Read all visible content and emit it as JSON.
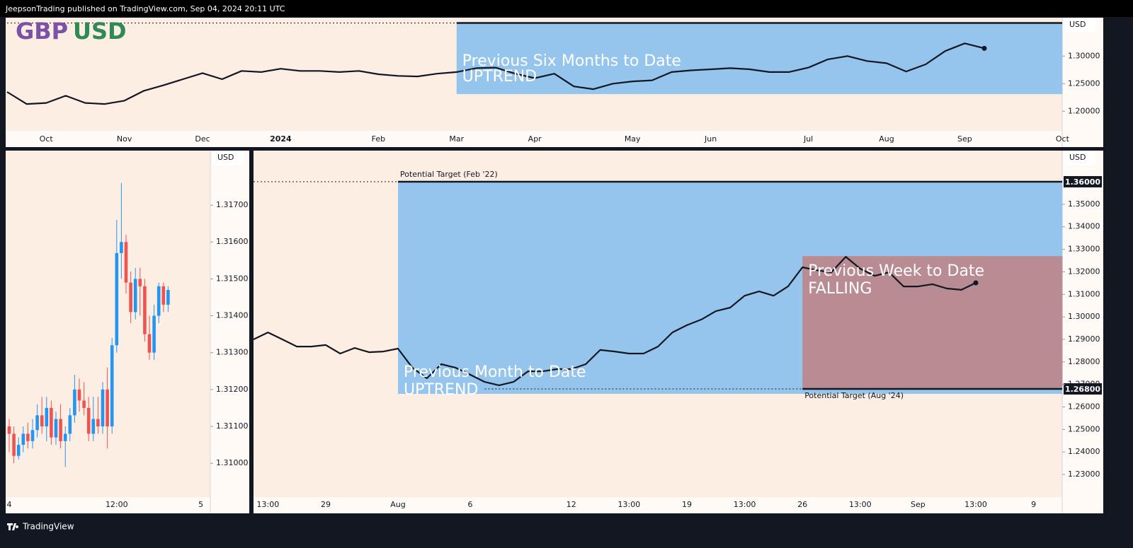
{
  "header": {
    "text": "JeepsonTrading published on TradingView.com, Sep 04, 2024 20:11 UTC"
  },
  "footer": {
    "brand": "TradingView"
  },
  "chart_data": [
    {
      "type": "line",
      "title": [
        {
          "text": "GBP",
          "color": "#7b52a8"
        },
        {
          "text": "USD",
          "color": "#2e8b57"
        }
      ],
      "axis_label": "USD",
      "color": "#131722",
      "categories": [
        null,
        null,
        "Oct",
        null,
        null,
        null,
        "Nov",
        null,
        null,
        null,
        "Dec",
        null,
        null,
        null,
        "2024",
        null,
        null,
        null,
        null,
        "Feb",
        null,
        null,
        null,
        "Mar",
        null,
        null,
        null,
        "Apr",
        null,
        null,
        null,
        null,
        "May",
        null,
        null,
        null,
        "Jun",
        null,
        null,
        null,
        null,
        "Jul",
        null,
        null,
        null,
        "Aug",
        null,
        null,
        null,
        "Sep",
        null,
        null,
        null,
        null,
        "Oct"
      ],
      "values": [
        1.235,
        1.213,
        1.215,
        1.228,
        1.215,
        1.213,
        1.219,
        1.237,
        1.247,
        1.258,
        1.269,
        1.258,
        1.273,
        1.271,
        1.277,
        1.273,
        1.273,
        1.271,
        1.273,
        1.267,
        1.264,
        1.263,
        1.268,
        1.271,
        1.278,
        1.279,
        1.268,
        1.26,
        1.268,
        1.245,
        1.24,
        1.25,
        1.254,
        1.256,
        1.271,
        1.274,
        1.276,
        1.278,
        1.276,
        1.271,
        1.271,
        1.279,
        1.294,
        1.3,
        1.291,
        1.287,
        1.272,
        1.285,
        1.309,
        1.323,
        1.314,
        null,
        null,
        null,
        null
      ],
      "ylim": [
        1.167,
        1.367
      ],
      "yticks": [
        {
          "value": 1.2,
          "label": "1.20000"
        },
        {
          "value": 1.25,
          "label": "1.25000"
        },
        {
          "value": 1.3,
          "label": "1.30000"
        }
      ],
      "regions": [
        {
          "lines": [
            "Previous Six Months to Date",
            "UPTREND"
          ],
          "color": "#95c5ec",
          "xrange": [
            23,
            54
          ],
          "yrange": [
            1.231,
            1.36
          ],
          "text_position": "middle"
        }
      ],
      "levels": [
        {
          "value": 1.36,
          "from": 23,
          "dotted_from": 0
        }
      ]
    },
    {
      "type": "candlestick",
      "axis_label": "USD",
      "up_color": "#2196f3",
      "down_color": "#ef5350",
      "categories": [
        "4",
        null,
        null,
        null,
        null,
        null,
        null,
        null,
        null,
        null,
        null,
        null,
        null,
        null,
        null,
        null,
        null,
        null,
        null,
        null,
        null,
        null,
        null,
        "12:00",
        null,
        null,
        null,
        null,
        null,
        null,
        null,
        null,
        null,
        null,
        null,
        null,
        null,
        null,
        null,
        null,
        null,
        "5",
        null
      ],
      "open": [
        1.311,
        1.3108,
        1.3102,
        1.3105,
        1.3108,
        1.3106,
        1.3109,
        1.3113,
        1.311,
        1.3115,
        1.3107,
        1.3112,
        1.3106,
        1.3108,
        1.3113,
        1.312,
        1.3117,
        1.3115,
        1.3108,
        1.3112,
        1.311,
        1.312,
        1.311,
        1.3132,
        1.3157,
        1.316,
        1.3149,
        1.3141,
        1.315,
        1.3148,
        1.3135,
        1.313,
        1.314,
        1.3148,
        1.3143,
        null,
        null,
        null,
        null,
        null,
        null,
        null,
        null
      ],
      "high": [
        1.3112,
        1.311,
        1.3107,
        1.311,
        1.3111,
        1.3112,
        1.3116,
        1.3118,
        1.3118,
        1.3117,
        1.3114,
        1.3116,
        1.311,
        1.3115,
        1.3124,
        1.3123,
        1.3122,
        1.3118,
        1.3118,
        1.3118,
        1.3122,
        1.3126,
        1.3134,
        1.3166,
        1.3176,
        1.3162,
        1.3152,
        1.3153,
        1.3153,
        1.315,
        1.314,
        1.3143,
        1.3149,
        1.3149,
        1.3148,
        null,
        null,
        null,
        null,
        null,
        null,
        null,
        null
      ],
      "low": [
        1.3103,
        1.31,
        1.3101,
        1.3103,
        1.3104,
        1.3104,
        1.3107,
        1.3108,
        1.3106,
        1.3105,
        1.3105,
        1.3104,
        1.3099,
        1.3106,
        1.3111,
        1.3114,
        1.3113,
        1.3106,
        1.3106,
        1.3108,
        1.3108,
        1.3104,
        1.3108,
        1.313,
        1.315,
        1.3146,
        1.3138,
        1.3139,
        1.314,
        1.3133,
        1.3128,
        1.3128,
        1.3138,
        1.3141,
        1.3141,
        null,
        null,
        null,
        null,
        null,
        null,
        null,
        null
      ],
      "close": [
        1.3108,
        1.3102,
        1.3105,
        1.3108,
        1.3106,
        1.3109,
        1.3113,
        1.311,
        1.3115,
        1.3107,
        1.3112,
        1.3106,
        1.3108,
        1.3113,
        1.312,
        1.3117,
        1.3115,
        1.3108,
        1.3112,
        1.311,
        1.312,
        1.311,
        1.3132,
        1.3157,
        1.316,
        1.3149,
        1.3141,
        1.315,
        1.3148,
        1.3135,
        1.313,
        1.314,
        1.3148,
        1.3143,
        1.3147,
        null,
        null,
        null,
        null,
        null,
        null,
        null,
        null
      ],
      "ylim": [
        1.30914,
        1.31844
      ],
      "yticks": [
        {
          "value": 1.31,
          "label": "1.31000"
        },
        {
          "value": 1.311,
          "label": "1.31100"
        },
        {
          "value": 1.312,
          "label": "1.31200"
        },
        {
          "value": 1.313,
          "label": "1.31300"
        },
        {
          "value": 1.314,
          "label": "1.31400"
        },
        {
          "value": 1.315,
          "label": "1.31500"
        },
        {
          "value": 1.316,
          "label": "1.31600"
        },
        {
          "value": 1.317,
          "label": "1.31700"
        }
      ]
    },
    {
      "type": "line",
      "axis_label": "USD",
      "color": "#131722",
      "categories": [
        null,
        "13:00",
        null,
        null,
        null,
        "29",
        null,
        null,
        null,
        null,
        "Aug",
        null,
        null,
        null,
        null,
        "6",
        null,
        null,
        null,
        null,
        null,
        null,
        "12",
        null,
        null,
        null,
        "13:00",
        null,
        null,
        null,
        "19",
        null,
        null,
        null,
        "13:00",
        null,
        null,
        null,
        "26",
        null,
        null,
        null,
        "13:00",
        null,
        null,
        null,
        "Sep",
        null,
        null,
        null,
        "13:00",
        null,
        null,
        null,
        "9",
        null,
        null
      ],
      "values": [
        1.29,
        1.2931,
        1.29,
        1.2868,
        1.2868,
        1.2875,
        1.2837,
        1.2862,
        1.2843,
        1.2846,
        1.2859,
        1.2774,
        1.2727,
        1.279,
        1.2774,
        1.2743,
        1.2711,
        1.2696,
        1.2711,
        1.2758,
        1.2758,
        1.2768,
        1.2768,
        1.279,
        1.2853,
        1.2846,
        1.2837,
        1.2837,
        1.2868,
        1.2931,
        1.2963,
        1.2988,
        1.3025,
        1.3041,
        1.3094,
        1.3113,
        1.3094,
        1.3135,
        1.322,
        1.3207,
        1.3198,
        1.3267,
        1.3214,
        1.3182,
        1.3198,
        1.3135,
        1.3135,
        1.3145,
        1.3126,
        1.312,
        1.3151,
        null,
        null,
        null,
        null,
        null,
        null
      ],
      "ylim": [
        1.2209,
        1.3732
      ],
      "yticks": [
        {
          "value": 1.23,
          "label": "1.23000"
        },
        {
          "value": 1.24,
          "label": "1.24000"
        },
        {
          "value": 1.25,
          "label": "1.25000"
        },
        {
          "value": 1.26,
          "label": "1.26000"
        },
        {
          "value": 1.27,
          "label": "1.27000"
        },
        {
          "value": 1.28,
          "label": "1.28000"
        },
        {
          "value": 1.29,
          "label": "1.29000"
        },
        {
          "value": 1.3,
          "label": "1.30000"
        },
        {
          "value": 1.31,
          "label": "1.31000"
        },
        {
          "value": 1.32,
          "label": "1.32000"
        },
        {
          "value": 1.33,
          "label": "1.33000"
        },
        {
          "value": 1.34,
          "label": "1.34000"
        },
        {
          "value": 1.35,
          "label": "1.35000"
        }
      ],
      "regions": [
        {
          "lines": [
            "Previous Month to Date",
            "UPTREND"
          ],
          "color": "#95c5ec",
          "xrange": [
            10,
            56
          ],
          "yrange": [
            1.2658,
            1.36
          ],
          "text_position": "bottom"
        },
        {
          "lines": [
            "Previous Week to Date",
            "FALLING"
          ],
          "color": "#b98c94",
          "xrange": [
            38,
            56
          ],
          "yrange": [
            1.268,
            1.327
          ],
          "text_position": "top"
        }
      ],
      "levels": [
        {
          "value": 1.36,
          "label": "Potential Target (Feb '22)",
          "label_side": "above",
          "price_label": "1.36000",
          "from": 10,
          "dotted_from": 0
        },
        {
          "value": 1.268,
          "label": "Potential Target (Aug '24)",
          "label_side": "below",
          "price_label": "1.26800",
          "from": 38,
          "dotted_from": 16
        }
      ]
    }
  ]
}
